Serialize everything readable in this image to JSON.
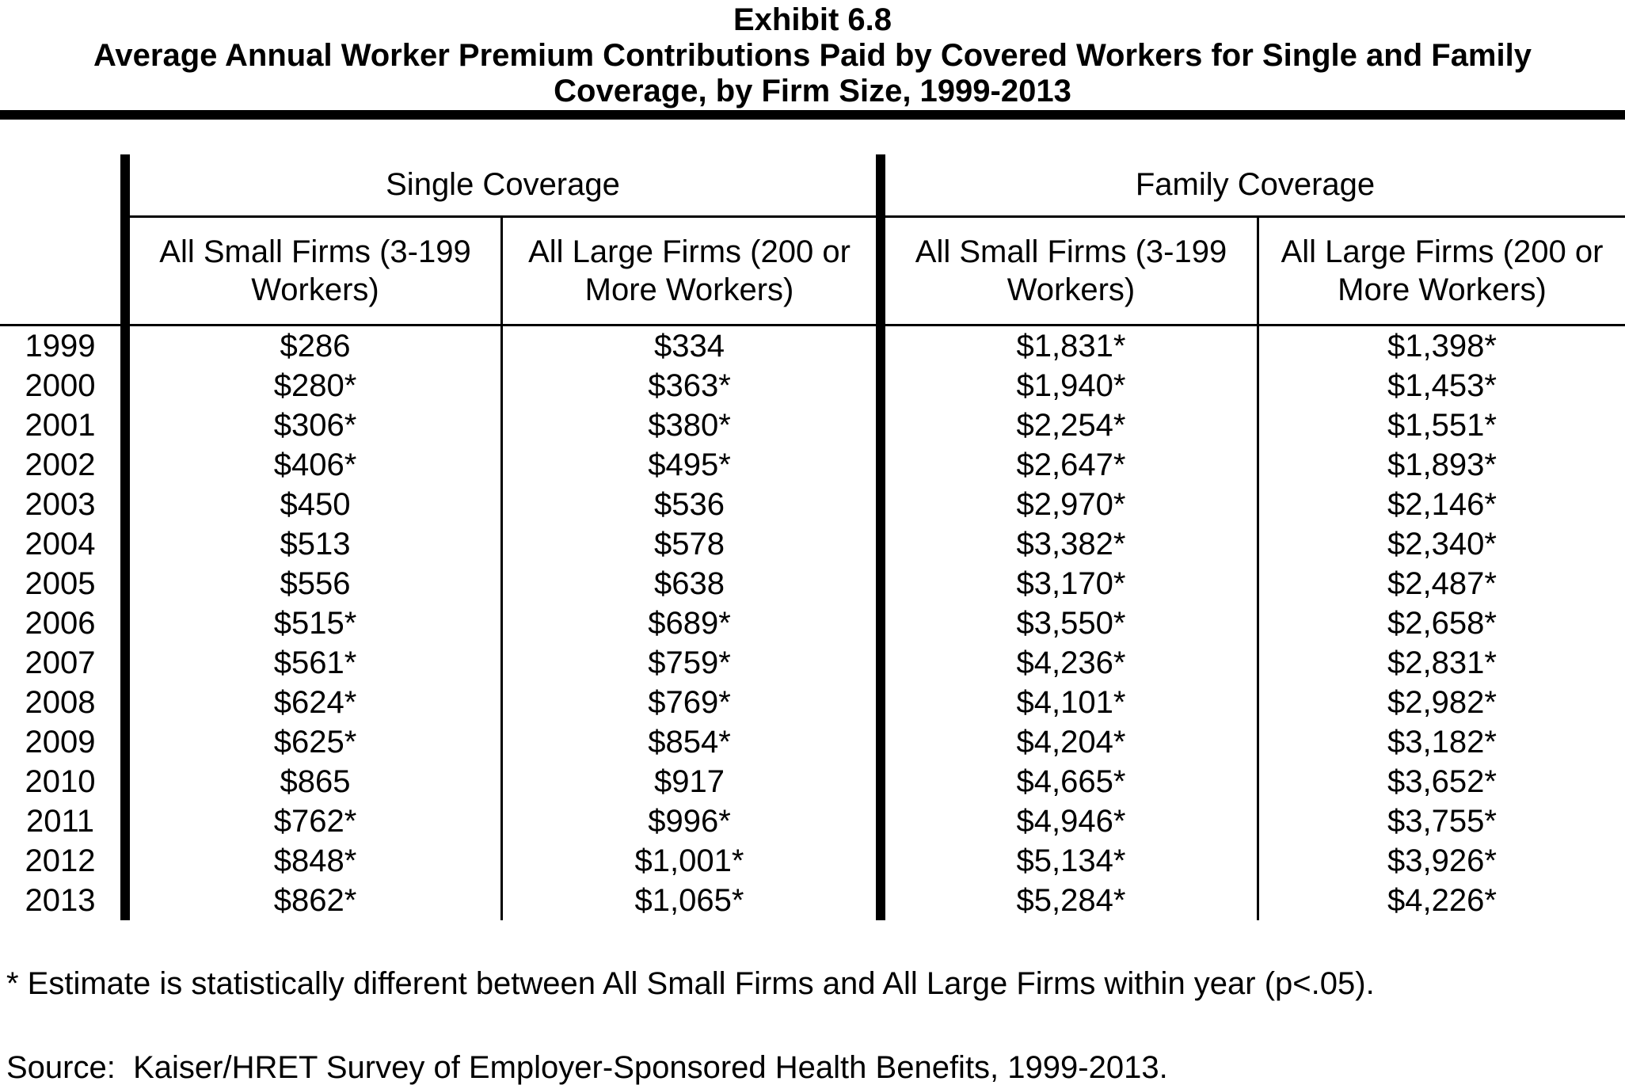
{
  "title": {
    "line1": "Exhibit 6.8",
    "line2": "Average Annual Worker Premium Contributions Paid by Covered Workers for Single and Family",
    "line3": "Coverage, by Firm Size, 1999-2013"
  },
  "table": {
    "section_headers": [
      "Single Coverage",
      "Family Coverage"
    ],
    "column_headers": [
      "All Small Firms (3-199 Workers)",
      "All Large Firms (200 or More Workers)",
      "All Small Firms (3-199 Workers)",
      "All Large Firms (200 or More Workers)"
    ],
    "rows": [
      [
        "1999",
        "$286",
        "$334",
        "$1,831*",
        "$1,398*"
      ],
      [
        "2000",
        "$280*",
        "$363*",
        "$1,940*",
        "$1,453*"
      ],
      [
        "2001",
        "$306*",
        "$380*",
        "$2,254*",
        "$1,551*"
      ],
      [
        "2002",
        "$406*",
        "$495*",
        "$2,647*",
        "$1,893*"
      ],
      [
        "2003",
        "$450",
        "$536",
        "$2,970*",
        "$2,146*"
      ],
      [
        "2004",
        "$513",
        "$578",
        "$3,382*",
        "$2,340*"
      ],
      [
        "2005",
        "$556",
        "$638",
        "$3,170*",
        "$2,487*"
      ],
      [
        "2006",
        "$515*",
        "$689*",
        "$3,550*",
        "$2,658*"
      ],
      [
        "2007",
        "$561*",
        "$759*",
        "$4,236*",
        "$2,831*"
      ],
      [
        "2008",
        "$624*",
        "$769*",
        "$4,101*",
        "$2,982*"
      ],
      [
        "2009",
        "$625*",
        "$854*",
        "$4,204*",
        "$3,182*"
      ],
      [
        "2010",
        "$865",
        "$917",
        "$4,665*",
        "$3,652*"
      ],
      [
        "2011",
        "$762*",
        "$996*",
        "$4,946*",
        "$3,755*"
      ],
      [
        "2012",
        "$848*",
        "$1,001*",
        "$5,134*",
        "$3,926*"
      ],
      [
        "2013",
        "$862*",
        "$1,065*",
        "$5,284*",
        "$4,226*"
      ]
    ]
  },
  "footnotes": {
    "asterisk": "* Estimate is statistically different between All Small Firms and All Large Firms within year (p<.05).",
    "source": "Source:  Kaiser/HRET Survey of Employer-Sponsored Health Benefits, 1999-2013."
  },
  "colors": {
    "text": "#000000",
    "background": "#ffffff",
    "border": "#000000"
  }
}
